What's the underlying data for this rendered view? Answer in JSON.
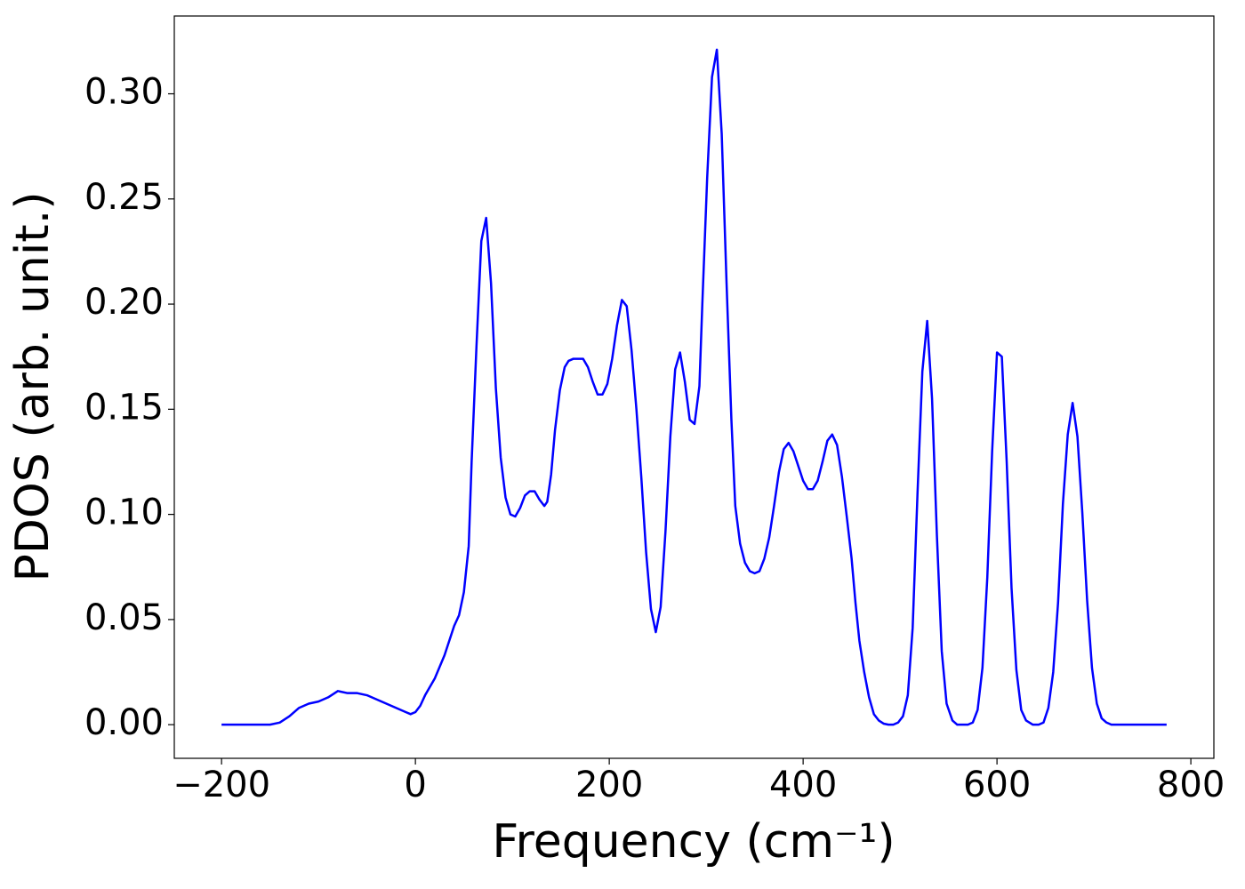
{
  "chart_data": {
    "type": "line",
    "xlabel": "Frequency (cm⁻¹)",
    "ylabel": "PDOS (arb. unit.)",
    "xlim": [
      -248.75,
      823.75
    ],
    "ylim": [
      -0.016,
      0.337
    ],
    "xticks": [
      {
        "value": -200,
        "label": "−200"
      },
      0,
      200,
      400,
      600,
      800
    ],
    "yticks": [
      {
        "value": 0,
        "label": "0.00"
      },
      {
        "value": 0.05,
        "label": "0.05"
      },
      {
        "value": 0.1,
        "label": "0.10"
      },
      {
        "value": 0.15,
        "label": "0.15"
      },
      {
        "value": 0.2,
        "label": "0.20"
      },
      {
        "value": 0.25,
        "label": "0.25"
      },
      {
        "value": 0.3,
        "label": "0.30"
      }
    ],
    "grid": false,
    "series": [
      {
        "color": "#0000ff",
        "x": [
          -200,
          -150,
          -140,
          -130,
          -120,
          -110,
          -100,
          -90,
          -80,
          -70,
          -60,
          -50,
          -40,
          -30,
          -20,
          -10,
          -5,
          0,
          5,
          10,
          20,
          30,
          40,
          45,
          50,
          55,
          58,
          63,
          68,
          73,
          78,
          83,
          88,
          93,
          98,
          103,
          108,
          113,
          118,
          123,
          128,
          133,
          136,
          140,
          144,
          149,
          154,
          158,
          163,
          168,
          173,
          178,
          183,
          188,
          193,
          198,
          203,
          208,
          213,
          218,
          223,
          228,
          233,
          238,
          243,
          248,
          253,
          258,
          263,
          268,
          273,
          278,
          283,
          288,
          293,
          296,
          301,
          306,
          311,
          316,
          321,
          326,
          330,
          335,
          340,
          345,
          350,
          355,
          360,
          365,
          370,
          375,
          380,
          385,
          390,
          395,
          400,
          405,
          410,
          415,
          420,
          425,
          430,
          435,
          440,
          445,
          450,
          454,
          458,
          463,
          468,
          473,
          478,
          483,
          488,
          493,
          498,
          503,
          508,
          513,
          518,
          523,
          528,
          533,
          538,
          543,
          548,
          554,
          559,
          565,
          570,
          575,
          580,
          585,
          590,
          595,
          600,
          605,
          610,
          615,
          620,
          625,
          630,
          637,
          643,
          648,
          653,
          658,
          663,
          668,
          673,
          678,
          683,
          688,
          693,
          698,
          703,
          708,
          713,
          718,
          775
        ],
        "values": [
          0,
          0,
          0.001,
          0.004,
          0.008,
          0.01,
          0.011,
          0.013,
          0.016,
          0.015,
          0.015,
          0.014,
          0.012,
          0.01,
          0.008,
          0.006,
          0.005,
          0.006,
          0.009,
          0.014,
          0.022,
          0.033,
          0.047,
          0.052,
          0.063,
          0.085,
          0.125,
          0.18,
          0.23,
          0.241,
          0.21,
          0.16,
          0.127,
          0.108,
          0.1,
          0.099,
          0.103,
          0.109,
          0.111,
          0.111,
          0.107,
          0.104,
          0.106,
          0.119,
          0.14,
          0.159,
          0.17,
          0.173,
          0.174,
          0.174,
          0.174,
          0.17,
          0.163,
          0.157,
          0.157,
          0.162,
          0.174,
          0.19,
          0.202,
          0.199,
          0.178,
          0.15,
          0.118,
          0.082,
          0.055,
          0.044,
          0.056,
          0.092,
          0.137,
          0.169,
          0.177,
          0.163,
          0.145,
          0.143,
          0.161,
          0.2,
          0.26,
          0.308,
          0.321,
          0.281,
          0.21,
          0.145,
          0.104,
          0.086,
          0.077,
          0.073,
          0.072,
          0.073,
          0.079,
          0.089,
          0.104,
          0.12,
          0.131,
          0.134,
          0.13,
          0.123,
          0.116,
          0.112,
          0.112,
          0.116,
          0.125,
          0.135,
          0.138,
          0.133,
          0.118,
          0.099,
          0.079,
          0.058,
          0.04,
          0.025,
          0.013,
          0.005,
          0.002,
          0.0005,
          0,
          0,
          0.001,
          0.004,
          0.014,
          0.046,
          0.11,
          0.168,
          0.192,
          0.155,
          0.09,
          0.035,
          0.01,
          0.002,
          0,
          0,
          0,
          0.001,
          0.007,
          0.027,
          0.07,
          0.13,
          0.177,
          0.175,
          0.125,
          0.065,
          0.026,
          0.007,
          0.002,
          0,
          0,
          0.001,
          0.008,
          0.025,
          0.058,
          0.105,
          0.138,
          0.153,
          0.137,
          0.101,
          0.059,
          0.027,
          0.01,
          0.003,
          0.001,
          0,
          0
        ]
      }
    ]
  }
}
